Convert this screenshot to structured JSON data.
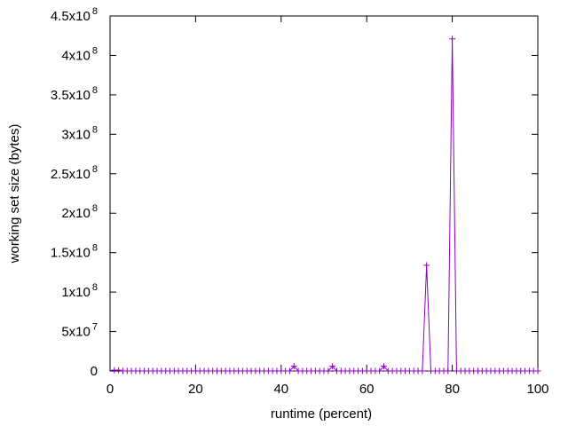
{
  "chart_data": {
    "type": "line",
    "xlabel": "runtime (percent)",
    "ylabel": "working set size (bytes)",
    "xlim": [
      0,
      100
    ],
    "ylim": [
      0,
      450000000
    ],
    "grid": false,
    "legend": "none",
    "x_ticks": [
      "0",
      "20",
      "40",
      "60",
      "80",
      "100"
    ],
    "y_ticks": [
      {
        "value": 0,
        "mantissa": "0",
        "exponent": ""
      },
      {
        "value": 50000000,
        "mantissa": "5x10",
        "exponent": "7"
      },
      {
        "value": 100000000,
        "mantissa": "1x10",
        "exponent": "8"
      },
      {
        "value": 150000000,
        "mantissa": "1.5x10",
        "exponent": "8"
      },
      {
        "value": 200000000,
        "mantissa": "2x10",
        "exponent": "8"
      },
      {
        "value": 250000000,
        "mantissa": "2.5x10",
        "exponent": "8"
      },
      {
        "value": 300000000,
        "mantissa": "3x10",
        "exponent": "8"
      },
      {
        "value": 350000000,
        "mantissa": "3.5x10",
        "exponent": "8"
      },
      {
        "value": 400000000,
        "mantissa": "4x10",
        "exponent": "8"
      },
      {
        "value": 450000000,
        "mantissa": "4.5x10",
        "exponent": "8"
      }
    ],
    "colors": {
      "line": "#8c00c4",
      "axis": "#000000"
    },
    "series": [
      {
        "x": [
          1,
          2,
          3,
          4,
          5,
          6,
          7,
          8,
          9,
          10,
          11,
          12,
          13,
          14,
          15,
          16,
          17,
          18,
          19,
          20,
          21,
          22,
          23,
          24,
          25,
          26,
          27,
          28,
          29,
          30,
          31,
          32,
          33,
          34,
          35,
          36,
          37,
          38,
          39,
          40,
          41,
          42,
          43,
          44,
          45,
          46,
          47,
          48,
          49,
          50,
          51,
          52,
          53,
          54,
          55,
          56,
          57,
          58,
          59,
          60,
          61,
          62,
          63,
          64,
          65,
          66,
          67,
          68,
          69,
          70,
          71,
          72,
          73,
          74,
          75,
          76,
          77,
          78,
          79,
          80,
          81,
          82,
          83,
          84,
          85,
          86,
          87,
          88,
          89,
          90,
          91,
          92,
          93,
          94,
          95,
          96,
          97,
          98,
          99,
          100
        ],
        "values": [
          1000000,
          1000000,
          0,
          0,
          0,
          0,
          0,
          0,
          0,
          0,
          0,
          0,
          0,
          0,
          0,
          0,
          0,
          0,
          0,
          0,
          0,
          0,
          0,
          0,
          0,
          0,
          0,
          0,
          0,
          0,
          0,
          0,
          0,
          0,
          0,
          0,
          0,
          0,
          0,
          0,
          0,
          0,
          6000000,
          0,
          0,
          0,
          0,
          0,
          0,
          0,
          0,
          6000000,
          0,
          0,
          0,
          0,
          0,
          0,
          0,
          0,
          0,
          0,
          0,
          6000000,
          0,
          0,
          0,
          0,
          0,
          0,
          0,
          0,
          0,
          134000000,
          0,
          0,
          0,
          0,
          0,
          421000000,
          0,
          0,
          0,
          0,
          0,
          0,
          0,
          0,
          0,
          0,
          0,
          0,
          0,
          0,
          0,
          0,
          0,
          0,
          0,
          0
        ]
      }
    ]
  }
}
